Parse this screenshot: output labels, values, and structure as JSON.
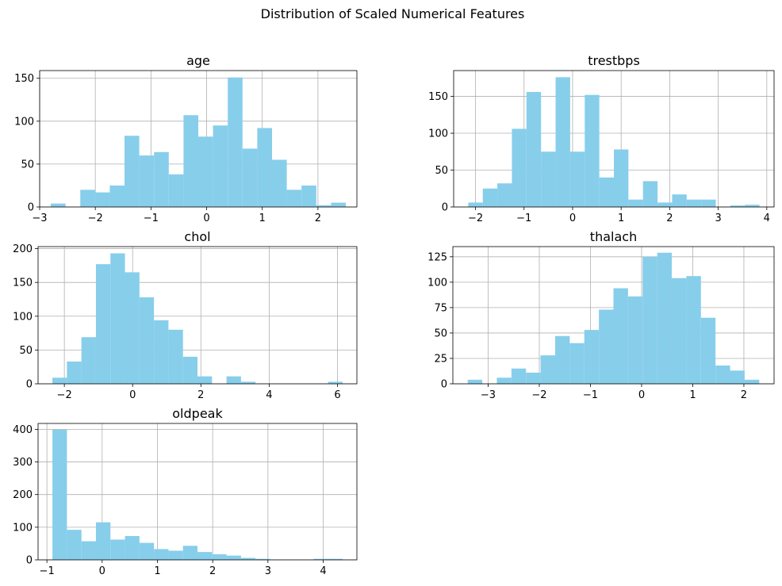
{
  "figure": {
    "suptitle": "Distribution of Scaled Numerical Features",
    "bar_color": "#87ceeb",
    "grid_color": "#b0b0b0"
  },
  "chart_data": [
    {
      "type": "bar",
      "title": "age",
      "bin_edges": [
        -2.8,
        -2.535,
        -2.27,
        -2.005,
        -1.74,
        -1.475,
        -1.21,
        -0.945,
        -0.68,
        -0.415,
        -0.15,
        0.115,
        0.38,
        0.645,
        0.91,
        1.175,
        1.44,
        1.705,
        1.97,
        2.235,
        2.5
      ],
      "values": [
        4,
        0,
        20,
        17,
        25,
        83,
        60,
        64,
        38,
        107,
        82,
        95,
        151,
        68,
        92,
        55,
        20,
        25,
        2,
        5
      ],
      "xlim": [
        -3.0,
        2.7
      ],
      "ylim": [
        0,
        159
      ],
      "xticks": [
        -3,
        -2,
        -1,
        0,
        1,
        2
      ],
      "xtick_labels": [
        "−3",
        "−2",
        "−1",
        "0",
        "1",
        "2"
      ],
      "yticks": [
        0,
        50,
        100,
        150
      ],
      "ytick_labels": [
        "0",
        "50",
        "100",
        "150"
      ],
      "grid": true
    },
    {
      "type": "bar",
      "title": "trestbps",
      "bin_edges": [
        -2.15,
        -1.85,
        -1.55,
        -1.25,
        -0.95,
        -0.65,
        -0.35,
        -0.05,
        0.25,
        0.55,
        0.85,
        1.15,
        1.45,
        1.75,
        2.05,
        2.35,
        2.65,
        2.95,
        3.25,
        3.55,
        3.85
      ],
      "values": [
        6,
        25,
        32,
        106,
        156,
        75,
        176,
        75,
        152,
        40,
        78,
        10,
        35,
        6,
        17,
        10,
        10,
        0,
        2,
        3
      ],
      "xlim": [
        -2.45,
        4.15
      ],
      "ylim": [
        0,
        185
      ],
      "xticks": [
        -2,
        -1,
        0,
        1,
        2,
        3,
        4
      ],
      "xtick_labels": [
        "−2",
        "−1",
        "0",
        "1",
        "2",
        "3",
        "4"
      ],
      "yticks": [
        0,
        50,
        100,
        150
      ],
      "ytick_labels": [
        "0",
        "50",
        "100",
        "150"
      ],
      "grid": true
    },
    {
      "type": "bar",
      "title": "chol",
      "bin_edges": [
        -2.35,
        -1.925,
        -1.5,
        -1.075,
        -0.65,
        -0.225,
        0.2,
        0.625,
        1.05,
        1.475,
        1.9,
        2.325,
        2.75,
        3.175,
        3.6,
        4.025,
        4.45,
        4.875,
        5.3,
        5.725,
        6.15
      ],
      "values": [
        9,
        33,
        69,
        177,
        193,
        165,
        128,
        94,
        80,
        40,
        11,
        0,
        11,
        3,
        0,
        0,
        0,
        0,
        0,
        3
      ],
      "xlim": [
        -2.77,
        6.57
      ],
      "ylim": [
        0,
        203
      ],
      "xticks": [
        -2,
        0,
        2,
        4,
        6
      ],
      "xtick_labels": [
        "−2",
        "0",
        "2",
        "4",
        "6"
      ],
      "yticks": [
        0,
        50,
        100,
        150,
        200
      ],
      "ytick_labels": [
        "0",
        "50",
        "100",
        "150",
        "200"
      ],
      "grid": true
    },
    {
      "type": "bar",
      "title": "thalach",
      "bin_edges": [
        -3.4,
        -3.115,
        -2.83,
        -2.545,
        -2.26,
        -1.975,
        -1.69,
        -1.405,
        -1.12,
        -0.835,
        -0.55,
        -0.265,
        0.02,
        0.305,
        0.59,
        0.875,
        1.16,
        1.445,
        1.73,
        2.015,
        2.3
      ],
      "values": [
        4,
        0,
        6,
        15,
        11,
        28,
        47,
        40,
        53,
        73,
        94,
        86,
        125,
        129,
        104,
        106,
        65,
        18,
        13,
        4
      ],
      "xlim": [
        -3.69,
        2.59
      ],
      "ylim": [
        0,
        135
      ],
      "xticks": [
        -3,
        -2,
        -1,
        0,
        1,
        2
      ],
      "xtick_labels": [
        "−3",
        "−2",
        "−1",
        "0",
        "1",
        "2"
      ],
      "yticks": [
        0,
        25,
        50,
        75,
        100,
        125
      ],
      "ytick_labels": [
        "0",
        "25",
        "50",
        "75",
        "100",
        "125"
      ],
      "grid": true
    },
    {
      "type": "bar",
      "title": "oldpeak",
      "bin_edges": [
        -0.9,
        -0.6375,
        -0.375,
        -0.1125,
        0.15,
        0.4125,
        0.675,
        0.9375,
        1.2,
        1.4625,
        1.725,
        1.9875,
        2.25,
        2.5125,
        2.775,
        3.0375,
        3.3,
        3.5625,
        3.825,
        4.0875,
        4.35
      ],
      "values": [
        399,
        92,
        57,
        115,
        62,
        73,
        52,
        33,
        28,
        43,
        24,
        17,
        13,
        6,
        3,
        1,
        1,
        0,
        3,
        3
      ],
      "xlim": [
        -1.16,
        4.61
      ],
      "ylim": [
        0,
        418
      ],
      "xticks": [
        -1,
        0,
        1,
        2,
        3,
        4
      ],
      "xtick_labels": [
        "−1",
        "0",
        "1",
        "2",
        "3",
        "4"
      ],
      "yticks": [
        0,
        100,
        200,
        300,
        400
      ],
      "ytick_labels": [
        "0",
        "100",
        "200",
        "300",
        "400"
      ],
      "grid": true
    }
  ]
}
